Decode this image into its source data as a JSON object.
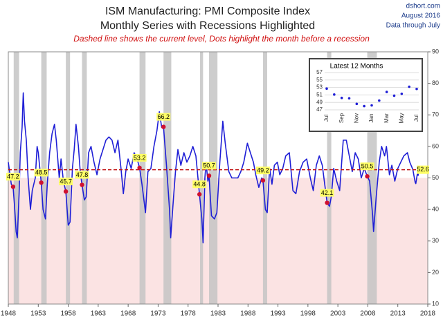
{
  "chart_data": [
    {
      "type": "line",
      "title": "ISM Manufacturing: PMI Composite Index",
      "subtitle": "Monthly Series with Recessions Highlighted",
      "note": "Dashed line shows the current level, Dots highlight the month before a recession",
      "source": "dshort.com",
      "date": "August 2016",
      "data_through": "Data through July",
      "color": "#1f1fd6",
      "x": [
        1948.0,
        1948.5,
        1948.8,
        1949.0,
        1949.3,
        1949.5,
        1949.8,
        1950.0,
        1950.3,
        1950.5,
        1950.7,
        1951.0,
        1951.3,
        1951.7,
        1952.0,
        1952.5,
        1952.8,
        1953.0,
        1953.5,
        1953.8,
        1954.2,
        1954.5,
        1954.9,
        1955.3,
        1955.7,
        1956.0,
        1956.5,
        1956.8,
        1957.2,
        1957.6,
        1958.0,
        1958.3,
        1958.7,
        1959.0,
        1959.3,
        1959.7,
        1960.0,
        1960.3,
        1960.7,
        1961.0,
        1961.4,
        1961.8,
        1962.3,
        1962.8,
        1963.3,
        1963.8,
        1964.3,
        1964.8,
        1965.3,
        1965.8,
        1966.3,
        1966.8,
        1967.2,
        1967.6,
        1968.0,
        1968.5,
        1969.0,
        1969.5,
        1969.9,
        1970.3,
        1970.9,
        1971.3,
        1971.8,
        1972.3,
        1972.8,
        1973.2,
        1973.6,
        1973.9,
        1974.4,
        1974.9,
        1975.1,
        1975.5,
        1975.9,
        1976.3,
        1976.8,
        1977.3,
        1977.8,
        1978.3,
        1978.8,
        1979.3,
        1979.9,
        1980.3,
        1980.5,
        1980.8,
        1981.0,
        1981.3,
        1981.5,
        1981.9,
        1982.4,
        1982.8,
        1983.3,
        1983.8,
        1984.2,
        1984.8,
        1985.3,
        1985.8,
        1986.3,
        1986.8,
        1987.3,
        1987.9,
        1988.4,
        1988.9,
        1989.3,
        1989.8,
        1990.3,
        1990.5,
        1990.9,
        1991.2,
        1991.6,
        1992.0,
        1992.4,
        1992.9,
        1993.3,
        1993.8,
        1994.3,
        1994.9,
        1995.5,
        1996.0,
        1996.6,
        1997.2,
        1997.8,
        1998.4,
        1998.9,
        1999.4,
        1999.9,
        2000.4,
        2000.8,
        2001.2,
        2001.6,
        2001.9,
        2002.3,
        2002.8,
        2003.3,
        2003.9,
        2004.4,
        2004.9,
        2005.4,
        2005.9,
        2006.4,
        2006.9,
        2007.4,
        2007.9,
        2008.3,
        2008.8,
        2008.95,
        2009.4,
        2009.9,
        2010.3,
        2010.8,
        2011.1,
        2011.6,
        2012.0,
        2012.5,
        2013.0,
        2013.5,
        2014.0,
        2014.6,
        2015.0,
        2015.5,
        2015.9,
        2016.0,
        2016.3,
        2016.4,
        2016.5,
        2016.55
      ],
      "values": [
        55,
        48,
        47.2,
        42,
        33,
        31,
        45,
        58,
        66,
        77,
        68,
        62,
        50,
        40,
        46,
        50,
        60,
        58,
        48.5,
        40,
        37,
        48,
        58,
        64,
        67,
        62,
        50,
        56,
        49,
        45.7,
        35,
        36,
        53,
        59,
        67,
        60,
        52,
        47.8,
        43,
        44,
        58,
        60,
        55,
        51,
        56,
        59,
        62,
        63,
        62,
        58,
        62,
        53,
        45,
        52,
        56,
        53,
        58,
        56,
        53.2,
        48,
        39,
        52,
        53,
        60,
        65,
        71,
        66,
        66.2,
        54,
        40,
        31,
        42,
        52,
        59,
        54,
        58,
        55,
        57,
        60,
        57,
        44.8,
        37,
        29.4,
        50,
        55,
        49,
        50.7,
        38,
        37,
        39,
        55,
        68,
        61,
        52,
        50,
        50,
        50,
        52,
        55,
        61,
        58,
        55,
        51,
        47,
        50,
        49.2,
        40,
        39,
        53,
        48,
        54,
        55,
        51,
        53,
        57,
        58,
        46,
        45,
        52,
        55,
        56,
        50,
        46,
        54,
        57,
        54,
        48,
        42.1,
        41,
        44,
        53,
        49,
        46,
        62,
        62,
        57,
        52,
        58,
        56,
        50,
        53,
        50.5,
        49,
        38,
        33,
        44,
        55,
        60,
        57,
        60,
        51,
        54,
        49,
        53,
        55,
        57,
        58,
        55,
        52.7,
        48.6,
        48.2,
        51.8,
        50.8,
        53.2,
        52.6
      ],
      "recessions": [
        [
          1948.9,
          1949.8
        ],
        [
          1953.5,
          1954.4
        ],
        [
          1957.6,
          1958.3
        ],
        [
          1960.3,
          1961.1
        ],
        [
          1969.9,
          1970.9
        ],
        [
          1973.9,
          1975.2
        ],
        [
          1980.0,
          1980.5
        ],
        [
          1981.5,
          1982.9
        ],
        [
          1990.5,
          1991.2
        ],
        [
          2001.2,
          2001.9
        ],
        [
          2007.9,
          2009.5
        ]
      ],
      "recession_markers": [
        {
          "x": 1948.8,
          "value": 47.2
        },
        {
          "x": 1953.5,
          "value": 48.5
        },
        {
          "x": 1957.6,
          "value": 45.7
        },
        {
          "x": 1960.3,
          "value": 47.8
        },
        {
          "x": 1969.9,
          "value": 53.2
        },
        {
          "x": 1973.9,
          "value": 66.2
        },
        {
          "x": 1979.9,
          "value": 44.8
        },
        {
          "x": 1981.5,
          "value": 50.7
        },
        {
          "x": 1990.5,
          "value": 49.2
        },
        {
          "x": 2001.2,
          "value": 42.1
        },
        {
          "x": 2007.9,
          "value": 50.5
        }
      ],
      "current_level": 52.6,
      "contraction_below": 50,
      "xlim": [
        1948,
        2018
      ],
      "xticks": [
        1948,
        1953,
        1958,
        1963,
        1968,
        1973,
        1978,
        1983,
        1988,
        1993,
        1998,
        2003,
        2008,
        2013,
        2018
      ],
      "ylim": [
        10,
        90
      ],
      "yticks": [
        10,
        20,
        30,
        40,
        50,
        60,
        70,
        80,
        90
      ]
    },
    {
      "type": "line",
      "title": "Latest 12 Months",
      "color": "#1f1fd6",
      "categories": [
        "Jul",
        null,
        "Sep",
        null,
        "Nov",
        null,
        "Jan",
        null,
        "Mar",
        null,
        "May",
        null,
        "Jul"
      ],
      "values": [
        52.7,
        51.1,
        50.2,
        50.1,
        48.6,
        48.0,
        48.2,
        49.5,
        51.8,
        50.8,
        51.3,
        53.2,
        52.6
      ],
      "ylim": [
        47,
        57
      ],
      "yticks": [
        47,
        49,
        51,
        53,
        55,
        57
      ]
    }
  ]
}
